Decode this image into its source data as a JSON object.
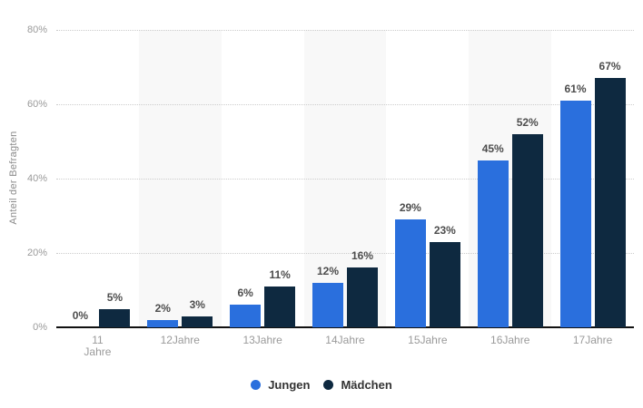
{
  "chart_data": {
    "type": "bar",
    "title": "",
    "categories": [
      "11 Jahre",
      "12Jahre",
      "13Jahre",
      "14Jahre",
      "15Jahre",
      "16Jahre",
      "17Jahre"
    ],
    "series": [
      {
        "name": "Jungen",
        "color": "#2a6fdd",
        "values": [
          0,
          2,
          6,
          12,
          29,
          45,
          61
        ]
      },
      {
        "name": "Mädchen",
        "color": "#0e2940",
        "values": [
          5,
          3,
          11,
          16,
          23,
          52,
          67
        ]
      }
    ],
    "xlabel": "",
    "ylabel": "Anteil der Befragten",
    "ylim": [
      0,
      80
    ],
    "yticks": [
      0,
      20,
      40,
      60,
      80
    ],
    "ytick_suffix": "%",
    "value_label_suffix": "%",
    "grid": "horizontal-dotted",
    "legend_position": "bottom-center",
    "background_stripes": "alternating columns (2nd, 4th, 6th shaded)"
  },
  "style": {
    "stripe_color": "#f8f8f8",
    "gridline_color": "#cccccc",
    "baseline_color": "#111111",
    "tick_text_color": "#9a9a9a",
    "axis_title_color": "#8a8a8a",
    "value_label_color": "#4d4d4d",
    "legend_text_color": "#333333",
    "background_color": "#ffffff"
  }
}
